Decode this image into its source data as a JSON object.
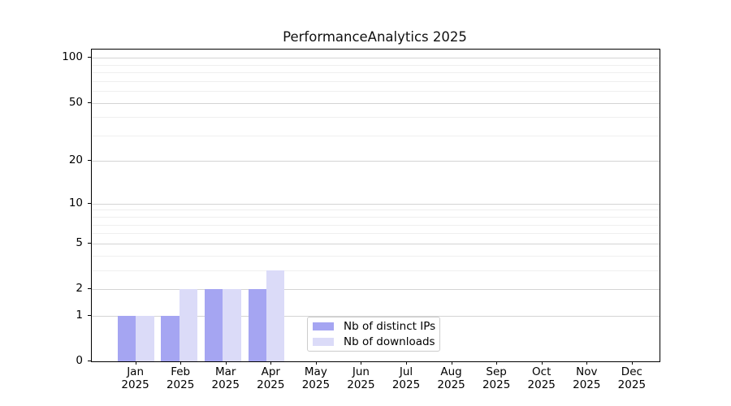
{
  "chart_data": {
    "type": "bar",
    "title": "PerformanceAnalytics 2025",
    "categories": [
      "Jan 2025",
      "Feb 2025",
      "Mar 2025",
      "Apr 2025",
      "May 2025",
      "Jun 2025",
      "Jul 2025",
      "Aug 2025",
      "Sep 2025",
      "Oct 2025",
      "Nov 2025",
      "Dec 2025"
    ],
    "series": [
      {
        "name": "Nb of distinct IPs",
        "color": "#a5a5f2",
        "values": [
          1,
          1,
          2,
          2,
          0,
          0,
          0,
          0,
          0,
          0,
          0,
          0
        ]
      },
      {
        "name": "Nb of downloads",
        "color": "#dbdbf8",
        "values": [
          1,
          2,
          2,
          3,
          0,
          0,
          0,
          0,
          0,
          0,
          0,
          0
        ]
      }
    ],
    "yscale": "log1p",
    "ylim": [
      0,
      113
    ],
    "yticks": [
      0,
      1,
      2,
      5,
      10,
      20,
      50,
      100
    ],
    "yticks_minor": [
      3,
      4,
      6,
      7,
      8,
      9,
      30,
      40,
      60,
      70,
      80,
      90
    ],
    "grid": true,
    "legend": {
      "position": "lower center",
      "entries": [
        "Nb of distinct IPs",
        "Nb of downloads"
      ]
    }
  },
  "colors": {
    "grid_major": "#d4d4d4",
    "grid_minor": "#efefef",
    "spine": "#000000",
    "background": "#ffffff",
    "legend_border": "#cccccc"
  }
}
